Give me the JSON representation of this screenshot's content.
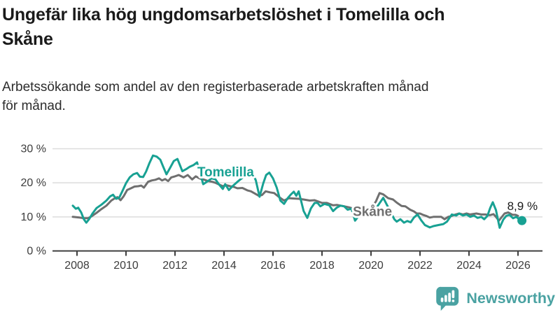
{
  "header": {
    "title": "Ungefär lika hög ungdomsarbetslöshet i Tomelilla och\nSkåne",
    "subtitle": "Arbetssökande som andel av den registerbaserade arbetskraften månad\nför månad."
  },
  "footer": {
    "brand": "Newsworthy",
    "logo_color": "#4aa2a2"
  },
  "chart_data": {
    "type": "line",
    "x_unit": "decimal_year",
    "xlim": [
      2007,
      2027
    ],
    "ylim": [
      0,
      30
    ],
    "grid": "horizontal",
    "legend_position": "inline-labels",
    "x_ticks": [
      2008,
      2010,
      2012,
      2014,
      2016,
      2018,
      2020,
      2022,
      2024,
      2026
    ],
    "y_ticks": [
      {
        "label": "0 %",
        "value": 0
      },
      {
        "label": "10 %",
        "value": 10
      },
      {
        "label": "20 %",
        "value": 20
      },
      {
        "label": "30 %",
        "value": 30
      }
    ],
    "series": [
      {
        "name": "Tomelilla",
        "color": "#18a193",
        "line_width": 3,
        "label": {
          "text": "Tomelilla",
          "x": 2012.91,
          "y": 21.9
        },
        "end_dot": true,
        "end_label": {
          "text": "8,9 %",
          "x": 2025.56,
          "y": 12.0
        },
        "points": [
          [
            2007.83,
            13.3
          ],
          [
            2007.95,
            12.4
          ],
          [
            2008.05,
            12.7
          ],
          [
            2008.17,
            11.3
          ],
          [
            2008.28,
            9.3
          ],
          [
            2008.38,
            8.3
          ],
          [
            2008.5,
            9.4
          ],
          [
            2008.63,
            11.0
          ],
          [
            2008.8,
            12.6
          ],
          [
            2009.0,
            13.6
          ],
          [
            2009.2,
            14.8
          ],
          [
            2009.35,
            16.0
          ],
          [
            2009.47,
            16.5
          ],
          [
            2009.6,
            15.3
          ],
          [
            2009.72,
            15.6
          ],
          [
            2009.85,
            17.5
          ],
          [
            2010.0,
            19.9
          ],
          [
            2010.15,
            21.6
          ],
          [
            2010.3,
            22.5
          ],
          [
            2010.45,
            22.9
          ],
          [
            2010.57,
            21.8
          ],
          [
            2010.7,
            21.7
          ],
          [
            2010.82,
            23.3
          ],
          [
            2010.95,
            25.7
          ],
          [
            2011.1,
            28.0
          ],
          [
            2011.25,
            27.7
          ],
          [
            2011.4,
            26.8
          ],
          [
            2011.52,
            24.7
          ],
          [
            2011.65,
            22.5
          ],
          [
            2011.8,
            24.4
          ],
          [
            2011.95,
            26.4
          ],
          [
            2012.1,
            27.0
          ],
          [
            2012.3,
            23.4
          ],
          [
            2012.45,
            24.0
          ],
          [
            2012.6,
            24.7
          ],
          [
            2012.75,
            25.2
          ],
          [
            2012.9,
            26.0
          ],
          [
            2013.15,
            19.6
          ],
          [
            2013.3,
            20.3
          ],
          [
            2013.5,
            21.3
          ],
          [
            2013.65,
            21.0
          ],
          [
            2013.8,
            19.5
          ],
          [
            2013.95,
            18.2
          ],
          [
            2014.05,
            19.6
          ],
          [
            2014.2,
            17.9
          ],
          [
            2014.35,
            19.0
          ],
          [
            2014.55,
            20.3
          ],
          [
            2014.72,
            21.3
          ],
          [
            2014.9,
            22.3
          ],
          [
            2015.05,
            21.9
          ],
          [
            2015.2,
            22.3
          ],
          [
            2015.3,
            20.7
          ],
          [
            2015.45,
            15.9
          ],
          [
            2015.6,
            19.8
          ],
          [
            2015.72,
            22.3
          ],
          [
            2015.85,
            23.0
          ],
          [
            2016.0,
            21.3
          ],
          [
            2016.15,
            18.6
          ],
          [
            2016.3,
            14.8
          ],
          [
            2016.45,
            13.8
          ],
          [
            2016.6,
            15.5
          ],
          [
            2016.72,
            16.5
          ],
          [
            2016.85,
            17.4
          ],
          [
            2016.95,
            16.2
          ],
          [
            2017.05,
            17.5
          ],
          [
            2017.25,
            11.7
          ],
          [
            2017.4,
            9.7
          ],
          [
            2017.55,
            12.5
          ],
          [
            2017.7,
            14.1
          ],
          [
            2017.82,
            14.1
          ],
          [
            2017.93,
            13.1
          ],
          [
            2018.1,
            13.8
          ],
          [
            2018.3,
            13.4
          ],
          [
            2018.45,
            11.7
          ],
          [
            2018.6,
            12.7
          ],
          [
            2018.75,
            13.3
          ],
          [
            2018.9,
            13.1
          ],
          [
            2019.05,
            12.1
          ],
          [
            2019.2,
            12.4
          ],
          [
            2019.35,
            8.9
          ],
          [
            2019.5,
            10.3
          ],
          [
            2019.7,
            11.0
          ],
          [
            2019.9,
            10.7
          ],
          [
            2020.1,
            11.3
          ],
          [
            2020.3,
            13.5
          ],
          [
            2020.5,
            15.6
          ],
          [
            2020.65,
            13.5
          ],
          [
            2020.8,
            11.5
          ],
          [
            2020.95,
            9.3
          ],
          [
            2021.05,
            8.6
          ],
          [
            2021.2,
            9.3
          ],
          [
            2021.35,
            8.3
          ],
          [
            2021.48,
            8.8
          ],
          [
            2021.62,
            8.4
          ],
          [
            2021.75,
            9.8
          ],
          [
            2021.9,
            10.7
          ],
          [
            2022.05,
            9.0
          ],
          [
            2022.2,
            7.6
          ],
          [
            2022.4,
            6.9
          ],
          [
            2022.55,
            7.3
          ],
          [
            2022.75,
            7.6
          ],
          [
            2022.95,
            7.9
          ],
          [
            2023.1,
            8.6
          ],
          [
            2023.3,
            10.7
          ],
          [
            2023.48,
            10.4
          ],
          [
            2023.6,
            11.0
          ],
          [
            2023.75,
            10.4
          ],
          [
            2023.9,
            10.7
          ],
          [
            2024.05,
            10.0
          ],
          [
            2024.2,
            10.4
          ],
          [
            2024.35,
            9.7
          ],
          [
            2024.5,
            10.0
          ],
          [
            2024.62,
            9.3
          ],
          [
            2024.75,
            10.3
          ],
          [
            2024.87,
            12.7
          ],
          [
            2024.97,
            14.3
          ],
          [
            2025.1,
            12.0
          ],
          [
            2025.25,
            6.8
          ],
          [
            2025.4,
            9.2
          ],
          [
            2025.52,
            10.3
          ],
          [
            2025.65,
            10.6
          ],
          [
            2025.8,
            9.6
          ],
          [
            2025.93,
            10.0
          ],
          [
            2026.05,
            9.3
          ],
          [
            2026.16,
            8.9
          ]
        ]
      },
      {
        "name": "Skåne",
        "color": "#6f6f6f",
        "line_width": 3,
        "label": {
          "text": "Skåne",
          "x": 2019.26,
          "y": 10.3
        },
        "end_dot": false,
        "points": [
          [
            2007.83,
            10.0
          ],
          [
            2008.1,
            9.8
          ],
          [
            2008.3,
            9.6
          ],
          [
            2008.45,
            9.6
          ],
          [
            2008.6,
            10.2
          ],
          [
            2008.8,
            11.2
          ],
          [
            2009.0,
            12.3
          ],
          [
            2009.2,
            13.3
          ],
          [
            2009.4,
            14.8
          ],
          [
            2009.55,
            15.5
          ],
          [
            2009.65,
            15.8
          ],
          [
            2009.78,
            14.9
          ],
          [
            2009.9,
            16.0
          ],
          [
            2010.05,
            17.9
          ],
          [
            2010.2,
            18.4
          ],
          [
            2010.35,
            18.9
          ],
          [
            2010.5,
            19.0
          ],
          [
            2010.62,
            19.2
          ],
          [
            2010.73,
            18.6
          ],
          [
            2010.9,
            20.3
          ],
          [
            2011.05,
            20.7
          ],
          [
            2011.2,
            20.9
          ],
          [
            2011.35,
            21.3
          ],
          [
            2011.47,
            20.7
          ],
          [
            2011.6,
            21.1
          ],
          [
            2011.72,
            20.5
          ],
          [
            2011.85,
            21.6
          ],
          [
            2012.0,
            21.9
          ],
          [
            2012.15,
            22.3
          ],
          [
            2012.35,
            21.6
          ],
          [
            2012.52,
            22.3
          ],
          [
            2012.7,
            21.0
          ],
          [
            2012.85,
            21.9
          ],
          [
            2013.0,
            21.3
          ],
          [
            2013.2,
            20.9
          ],
          [
            2013.35,
            20.5
          ],
          [
            2013.52,
            20.3
          ],
          [
            2013.65,
            20.0
          ],
          [
            2013.8,
            19.5
          ],
          [
            2013.95,
            19.0
          ],
          [
            2014.1,
            19.3
          ],
          [
            2014.25,
            19.0
          ],
          [
            2014.4,
            18.8
          ],
          [
            2014.55,
            18.4
          ],
          [
            2014.75,
            18.5
          ],
          [
            2014.95,
            17.8
          ],
          [
            2015.1,
            17.5
          ],
          [
            2015.25,
            16.9
          ],
          [
            2015.42,
            16.2
          ],
          [
            2015.55,
            16.4
          ],
          [
            2015.7,
            17.5
          ],
          [
            2015.88,
            17.2
          ],
          [
            2016.05,
            17.0
          ],
          [
            2016.25,
            15.8
          ],
          [
            2016.45,
            14.8
          ],
          [
            2016.65,
            15.5
          ],
          [
            2016.85,
            15.4
          ],
          [
            2017.05,
            15.3
          ],
          [
            2017.25,
            15.1
          ],
          [
            2017.5,
            14.8
          ],
          [
            2017.7,
            14.9
          ],
          [
            2017.85,
            14.5
          ],
          [
            2018.0,
            14.1
          ],
          [
            2018.2,
            14.1
          ],
          [
            2018.45,
            13.4
          ],
          [
            2018.62,
            13.5
          ],
          [
            2018.9,
            13.1
          ],
          [
            2019.1,
            12.8
          ],
          [
            2019.3,
            12.4
          ],
          [
            2019.5,
            12.3
          ],
          [
            2019.8,
            12.1
          ],
          [
            2020.0,
            12.6
          ],
          [
            2020.2,
            14.5
          ],
          [
            2020.35,
            17.0
          ],
          [
            2020.5,
            16.6
          ],
          [
            2020.7,
            15.5
          ],
          [
            2020.9,
            15.1
          ],
          [
            2021.05,
            14.2
          ],
          [
            2021.25,
            13.2
          ],
          [
            2021.4,
            13.1
          ],
          [
            2021.6,
            12.1
          ],
          [
            2021.75,
            11.6
          ],
          [
            2021.87,
            11.0
          ],
          [
            2022.0,
            11.0
          ],
          [
            2022.12,
            10.6
          ],
          [
            2022.25,
            10.3
          ],
          [
            2022.4,
            9.8
          ],
          [
            2022.55,
            10.0
          ],
          [
            2022.72,
            10.0
          ],
          [
            2022.87,
            10.0
          ],
          [
            2023.0,
            9.3
          ],
          [
            2023.15,
            10.0
          ],
          [
            2023.3,
            10.3
          ],
          [
            2023.45,
            10.7
          ],
          [
            2023.6,
            11.0
          ],
          [
            2023.75,
            10.7
          ],
          [
            2023.9,
            11.0
          ],
          [
            2024.05,
            10.7
          ],
          [
            2024.3,
            11.0
          ],
          [
            2024.5,
            10.7
          ],
          [
            2024.67,
            10.7
          ],
          [
            2024.85,
            10.5
          ],
          [
            2025.0,
            10.8
          ],
          [
            2025.1,
            10.0
          ],
          [
            2025.22,
            8.9
          ],
          [
            2025.45,
            11.0
          ],
          [
            2025.6,
            11.3
          ],
          [
            2025.78,
            10.6
          ],
          [
            2025.9,
            10.6
          ],
          [
            2026.0,
            10.3
          ]
        ]
      }
    ]
  }
}
